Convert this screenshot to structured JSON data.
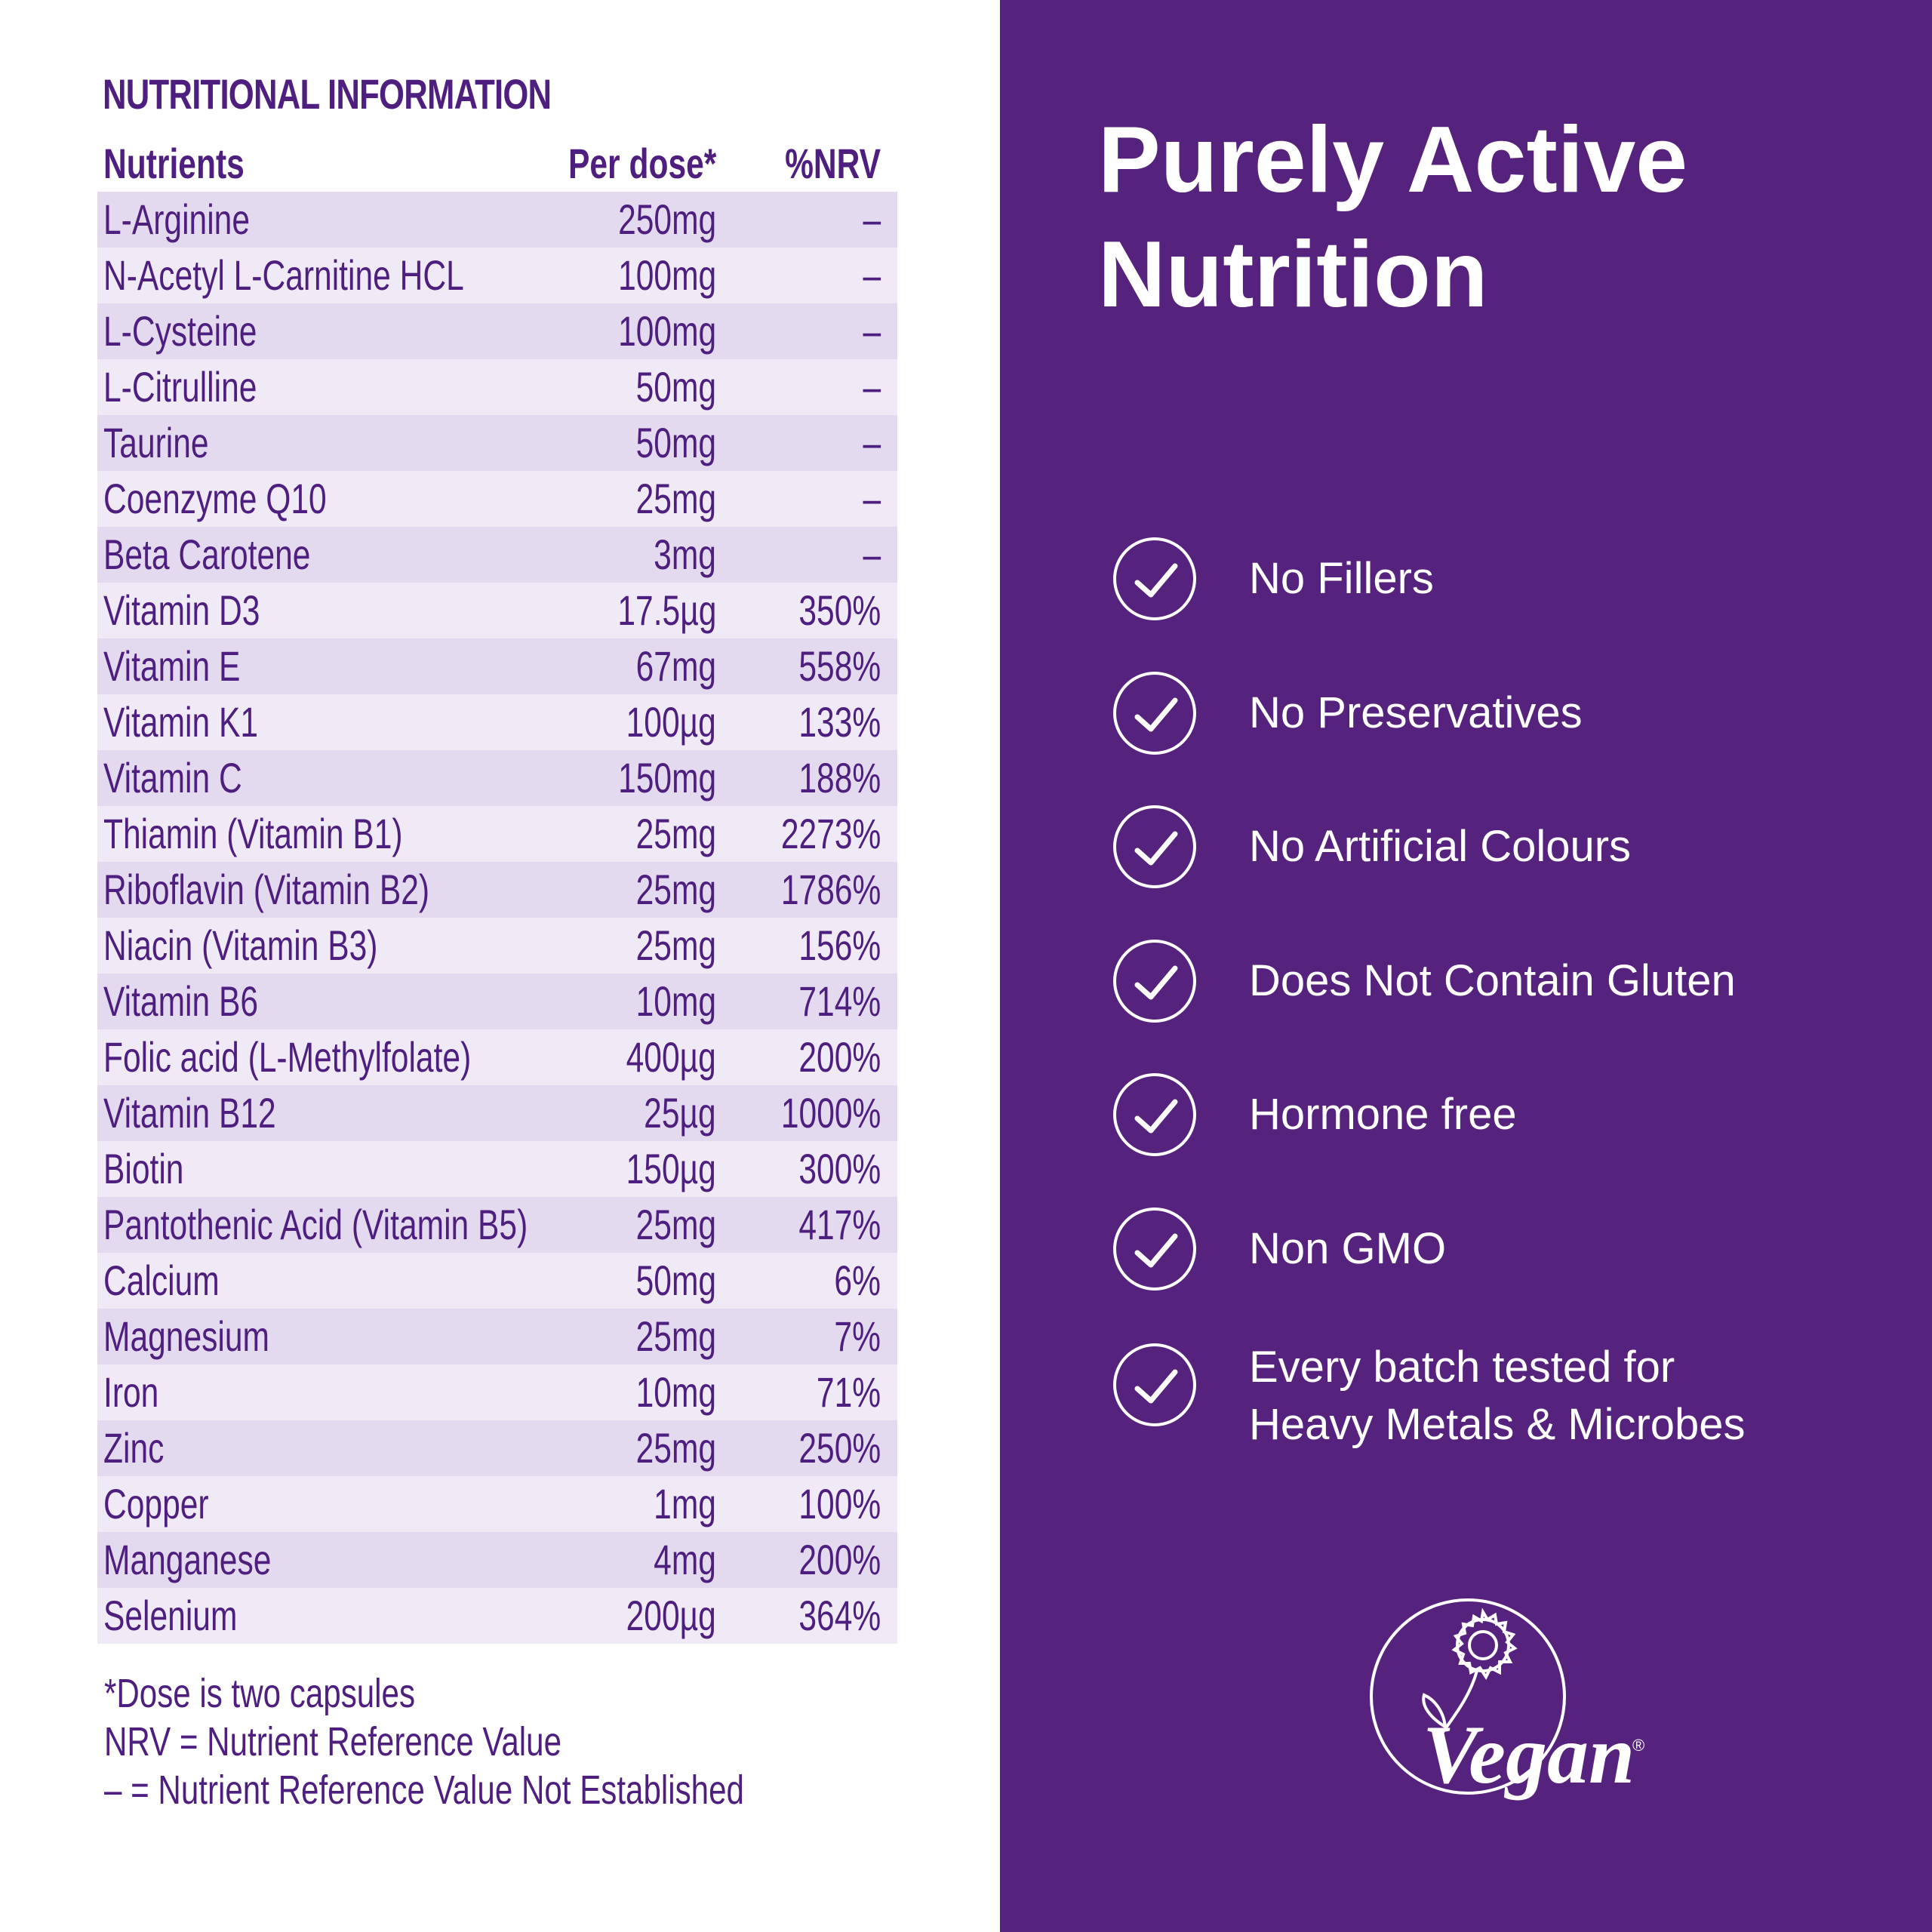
{
  "left_panel": {
    "heading": "NUTRITIONAL INFORMATION",
    "columns": {
      "nutrient": "Nutrients",
      "dose": "Per dose*",
      "nrv": "%NRV"
    },
    "rows": [
      {
        "name": "L-Arginine",
        "dose": "250mg",
        "nrv": "–"
      },
      {
        "name": "N-Acetyl L-Carnitine HCL",
        "dose": "100mg",
        "nrv": "–"
      },
      {
        "name": "L-Cysteine",
        "dose": "100mg",
        "nrv": "–"
      },
      {
        "name": "L-Citrulline",
        "dose": "50mg",
        "nrv": "–"
      },
      {
        "name": "Taurine",
        "dose": "50mg",
        "nrv": "–"
      },
      {
        "name": "Coenzyme Q10",
        "dose": "25mg",
        "nrv": "–"
      },
      {
        "name": "Beta Carotene",
        "dose": "3mg",
        "nrv": "–"
      },
      {
        "name": "Vitamin D3",
        "dose": "17.5µg",
        "nrv": "350%"
      },
      {
        "name": "Vitamin E",
        "dose": "67mg",
        "nrv": "558%"
      },
      {
        "name": "Vitamin K1",
        "dose": "100µg",
        "nrv": "133%"
      },
      {
        "name": "Vitamin C",
        "dose": "150mg",
        "nrv": "188%"
      },
      {
        "name": "Thiamin (Vitamin B1)",
        "dose": "25mg",
        "nrv": "2273%"
      },
      {
        "name": "Riboflavin (Vitamin B2)",
        "dose": "25mg",
        "nrv": "1786%"
      },
      {
        "name": "Niacin (Vitamin B3)",
        "dose": "25mg",
        "nrv": "156%"
      },
      {
        "name": "Vitamin B6",
        "dose": "10mg",
        "nrv": "714%"
      },
      {
        "name": "Folic acid (L-Methylfolate)",
        "dose": "400µg",
        "nrv": "200%"
      },
      {
        "name": "Vitamin B12",
        "dose": "25µg",
        "nrv": "1000%"
      },
      {
        "name": "Biotin",
        "dose": "150µg",
        "nrv": "300%"
      },
      {
        "name": "Pantothenic Acid (Vitamin B5)",
        "dose": "25mg",
        "nrv": "417%"
      },
      {
        "name": "Calcium",
        "dose": "50mg",
        "nrv": "6%"
      },
      {
        "name": "Magnesium",
        "dose": "25mg",
        "nrv": "7%"
      },
      {
        "name": "Iron",
        "dose": "10mg",
        "nrv": "71%"
      },
      {
        "name": "Zinc",
        "dose": "25mg",
        "nrv": "250%"
      },
      {
        "name": "Copper",
        "dose": "1mg",
        "nrv": "100%"
      },
      {
        "name": "Manganese",
        "dose": "4mg",
        "nrv": "200%"
      },
      {
        "name": "Selenium",
        "dose": "200µg",
        "nrv": "364%"
      }
    ],
    "footnotes": [
      "*Dose is two capsules",
      "NRV = Nutrient Reference Value",
      "– = Nutrient Reference Value Not Established"
    ]
  },
  "right_panel": {
    "title_line1": "Purely Active",
    "title_line2": "Nutrition",
    "features": [
      {
        "label": "No Fillers",
        "icon": "check-circle-icon"
      },
      {
        "label": "No Preservatives",
        "icon": "check-circle-icon"
      },
      {
        "label": "No Artificial Colours",
        "icon": "check-circle-icon"
      },
      {
        "label": "Does Not Contain Gluten",
        "icon": "check-circle-icon"
      },
      {
        "label": "Hormone free",
        "icon": "check-circle-icon"
      },
      {
        "label": "Non GMO",
        "icon": "check-circle-icon"
      },
      {
        "label": "Every batch tested for\nHeavy Metals & Microbes",
        "icon": "check-circle-icon"
      }
    ],
    "vegan_logo_text": "Vegan",
    "vegan_logo_mark": "®"
  },
  "colors": {
    "brand_purple": "#55237d",
    "text_purple": "#4f1f80",
    "row_dark": "#e4daef",
    "row_light": "#efeaf6",
    "white": "#ffffff"
  }
}
